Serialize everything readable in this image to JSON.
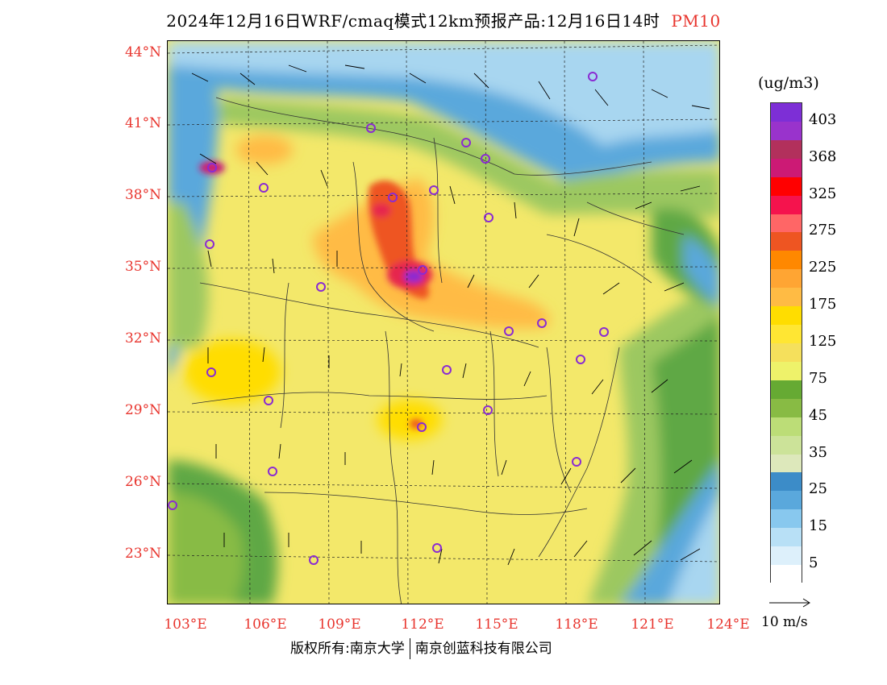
{
  "title": {
    "main": "2024年12月16日WRF/cmaq模式12km预报产品:12月16日14时",
    "pollutant": "PM10"
  },
  "lat_labels": [
    "44°N",
    "41°N",
    "38°N",
    "35°N",
    "32°N",
    "29°N",
    "26°N",
    "23°N"
  ],
  "lon_labels": [
    "103°E",
    "106°E",
    "109°E",
    "112°E",
    "115°E",
    "118°E",
    "121°E",
    "124°E"
  ],
  "colorbar": {
    "unit": "(ug/m3)",
    "labels": [
      "403",
      "368",
      "325",
      "275",
      "225",
      "175",
      "125",
      "75",
      "45",
      "35",
      "25",
      "15",
      "5"
    ],
    "colors": [
      "#7d2fd6",
      "#9933cc",
      "#b2305c",
      "#cc1a75",
      "#ff0000",
      "#f5134d",
      "#ff6666",
      "#ee5522",
      "#ff8800",
      "#ffa533",
      "#ffbb44",
      "#ffdd00",
      "#ffe633",
      "#f5e05c",
      "#eef26a",
      "#66aa33",
      "#88bb44",
      "#bcdd77",
      "#cce399",
      "#dde8bb",
      "#3c8cc8",
      "#5aa8dc",
      "#88c8ee",
      "#b8e0f6",
      "#ddf0fb",
      "#ffffff"
    ]
  },
  "vector_reference": {
    "label": "10 m/s"
  },
  "footer": {
    "left": "版权所有:南京大学",
    "right": "南京创蓝科技有限公司"
  },
  "map_colors": {
    "background_yellow": "#f3e86a",
    "light_yellow": "#ece27a",
    "green": "#9cc860",
    "dark_green": "#5fa845",
    "blue": "#5aa8dc",
    "light_blue": "#a8d6f0",
    "orange": "#ffbb44",
    "red": "#e6264d",
    "purple": "#8a2bd2"
  }
}
